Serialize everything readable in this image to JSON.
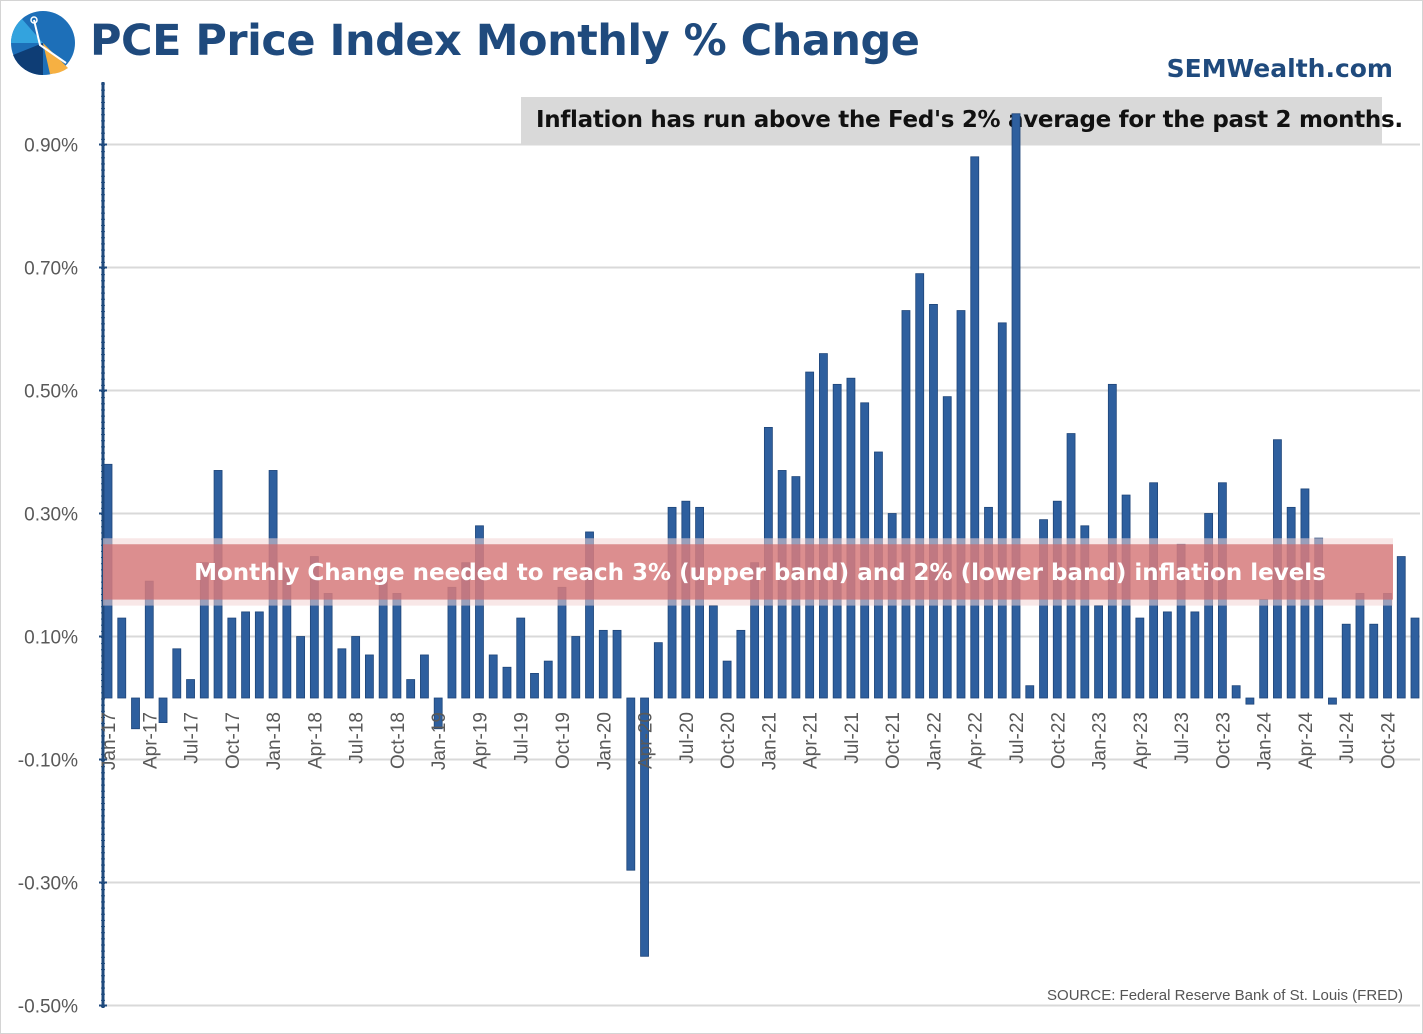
{
  "header": {
    "title": "PCE Price Index Monthly % Change",
    "site": "SEMWealth.com",
    "callout": "Inflation has run above the Fed's 2% average for the past 2 months.",
    "source": "SOURCE: Federal Reserve Bank of St. Louis (FRED)",
    "logo_icon": "compass-pie-logo-icon"
  },
  "colors": {
    "bar": "#2e5f9e",
    "title": "#1f4a7d",
    "band": "#d0686a",
    "grid": "#d9d9d9",
    "axis": "#1f4a7d"
  },
  "chart_data": {
    "type": "bar",
    "title": "PCE Price Index Monthly % Change",
    "xlabel": "",
    "ylabel": "",
    "ylim": [
      -0.5,
      0.95
    ],
    "yticks": [
      0.9,
      0.7,
      0.5,
      0.3,
      0.1,
      -0.1,
      -0.3,
      -0.5
    ],
    "ytick_labels": [
      "0.90%",
      "0.70%",
      "0.50%",
      "0.30%",
      "0.10%",
      "-0.10%",
      "-0.30%",
      "-0.50%"
    ],
    "grid": true,
    "xtick_labels": [
      "Jan-17",
      "Apr-17",
      "Jul-17",
      "Oct-17",
      "Jan-18",
      "Apr-18",
      "Jul-18",
      "Oct-18",
      "Jan-19",
      "Apr-19",
      "Jul-19",
      "Oct-19",
      "Jan-20",
      "Apr-20",
      "Jul-20",
      "Oct-20",
      "Jan-21",
      "Apr-21",
      "Jul-21",
      "Oct-21",
      "Jan-22",
      "Apr-22",
      "Jul-22",
      "Oct-22",
      "Jan-23",
      "Apr-23",
      "Jul-23",
      "Oct-23",
      "Jan-24",
      "Apr-24",
      "Jul-24",
      "Oct-24"
    ],
    "band": {
      "label": "Monthly Change needed to reach 3% (upper band) and 2% (lower band) inflation levels",
      "upper": 0.25,
      "lower": 0.16
    },
    "series": [
      {
        "name": "PCE Monthly % Change",
        "unit": "%",
        "values": [
          0.38,
          0.13,
          -0.05,
          0.19,
          -0.04,
          0.08,
          0.03,
          0.22,
          0.37,
          0.13,
          0.14,
          0.14,
          0.37,
          0.21,
          0.1,
          0.23,
          0.17,
          0.08,
          0.1,
          0.07,
          0.2,
          0.17,
          0.03,
          0.07,
          -0.05,
          0.18,
          0.22,
          0.28,
          0.07,
          0.05,
          0.13,
          0.04,
          0.06,
          0.18,
          0.1,
          0.27,
          0.11,
          0.11,
          -0.28,
          -0.42,
          0.09,
          0.31,
          0.32,
          0.31,
          0.15,
          0.06,
          0.11,
          0.22,
          0.44,
          0.37,
          0.36,
          0.53,
          0.56,
          0.51,
          0.52,
          0.48,
          0.4,
          0.3,
          0.63,
          0.69,
          0.64,
          0.49,
          0.63,
          0.88,
          0.31,
          0.61,
          0.95,
          0.02,
          0.29,
          0.32,
          0.43,
          0.28,
          0.15,
          0.51,
          0.33,
          0.13,
          0.35,
          0.14,
          0.25,
          0.14,
          0.3,
          0.35,
          0.02,
          -0.01,
          0.16,
          0.42,
          0.31,
          0.34,
          0.26,
          -0.01,
          0.12,
          0.17,
          0.12,
          0.17,
          0.23,
          0.13
        ]
      }
    ]
  }
}
